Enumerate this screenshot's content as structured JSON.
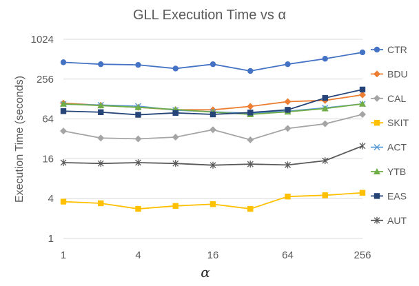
{
  "chart_data": {
    "type": "line",
    "title": "GLL Execution Time vs α",
    "xlabel": "α",
    "ylabel": "Execution Time (seconds)",
    "y_scale": "log2",
    "ylim": [
      1,
      1024
    ],
    "y_ticks": [
      1,
      4,
      16,
      64,
      256,
      1024
    ],
    "x_scale": "log2",
    "xlim": [
      1,
      256
    ],
    "x_ticks": [
      1,
      4,
      16,
      64,
      256
    ],
    "x": [
      1,
      2,
      4,
      8,
      16,
      32,
      64,
      128,
      256
    ],
    "grid": "horizontal",
    "legend_position": "right",
    "series": [
      {
        "name": "CTR",
        "color": "#4472C4",
        "marker": "circle",
        "values": [
          460,
          430,
          420,
          370,
          430,
          340,
          430,
          520,
          650
        ]
      },
      {
        "name": "BDU",
        "color": "#ED7D31",
        "marker": "diamond",
        "values": [
          111,
          103,
          96,
          88,
          88,
          99,
          117,
          122,
          148
        ]
      },
      {
        "name": "CAL",
        "color": "#A5A5A5",
        "marker": "diamond",
        "values": [
          42,
          33,
          32,
          34,
          44,
          31,
          46,
          54,
          75
        ]
      },
      {
        "name": "SKIT",
        "color": "#FFC000",
        "marker": "square",
        "values": [
          3.6,
          3.4,
          2.8,
          3.1,
          3.3,
          2.8,
          4.3,
          4.5,
          4.9
        ]
      },
      {
        "name": "ACT",
        "color": "#5B9BD5",
        "marker": "x",
        "values": [
          107,
          104,
          100,
          87,
          82,
          78,
          84,
          94,
          108
        ]
      },
      {
        "name": "YTB",
        "color": "#70AD47",
        "marker": "triangle",
        "values": [
          108,
          102,
          96,
          89,
          81,
          75,
          82,
          92,
          108
        ]
      },
      {
        "name": "EAS",
        "color": "#264478",
        "marker": "square",
        "values": [
          84,
          81,
          74,
          79,
          75,
          80,
          88,
          133,
          178
        ]
      },
      {
        "name": "AUT",
        "color": "#595959",
        "marker": "star",
        "values": [
          14,
          13.6,
          14,
          13.6,
          12.8,
          13.3,
          12.9,
          15,
          25
        ]
      }
    ]
  }
}
